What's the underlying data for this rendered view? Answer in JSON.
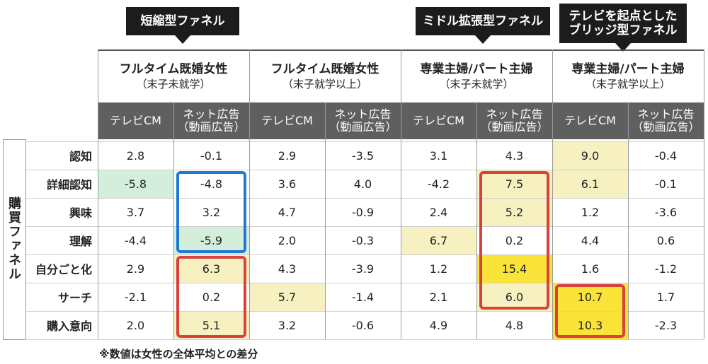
{
  "callouts": [
    {
      "id": "short",
      "lines": [
        "短縮型ファネル"
      ]
    },
    {
      "id": "middle",
      "lines": [
        "ミドル拡張型ファネル"
      ]
    },
    {
      "id": "bridge",
      "lines": [
        "テレビを起点とした",
        "ブリッジ型ファネル"
      ]
    }
  ],
  "funnel_axis_label": "購買ファネル",
  "note": "※数値は女性の全体平均との差分",
  "colors": {
    "highlight_light": "#f7f0c0",
    "highlight_strong": "#fbe43a",
    "highlight_green": "#d3efdc",
    "box_blue": "#1f78d6",
    "box_red": "#d9423a",
    "header_bg": "#5f5f5f"
  },
  "chart_data": {
    "type": "table",
    "segments": [
      {
        "name": "フルタイム既婚女性",
        "sub": "（末子未就学）"
      },
      {
        "name": "フルタイム既婚女性",
        "sub": "（末子就学以上）"
      },
      {
        "name": "専業主婦/パート主婦",
        "sub": "（末子未就学）"
      },
      {
        "name": "専業主婦/パート主婦",
        "sub": "（末子就学以上）"
      }
    ],
    "media": [
      [
        "テレビCM"
      ],
      [
        "ネット広告",
        "（動画広告）"
      ]
    ],
    "stages": [
      "認知",
      "詳細認知",
      "興味",
      "理解",
      "自分ごと化",
      "サーチ",
      "購入意向"
    ],
    "values": [
      [
        "2.8",
        "-0.1",
        "2.9",
        "-3.5",
        "3.1",
        "4.3",
        "9.0",
        "-0.4"
      ],
      [
        "-5.8",
        "-4.8",
        "3.6",
        "4.0",
        "-4.2",
        "7.5",
        "6.1",
        "-0.1"
      ],
      [
        "3.7",
        "3.2",
        "4.7",
        "-0.9",
        "2.4",
        "5.2",
        "1.2",
        "-3.6"
      ],
      [
        "-4.4",
        "-5.9",
        "2.0",
        "-0.3",
        "6.7",
        "0.2",
        "4.4",
        "0.6"
      ],
      [
        "2.9",
        "6.3",
        "4.3",
        "-3.9",
        "1.2",
        "15.4",
        "1.6",
        "-1.2"
      ],
      [
        "-2.1",
        "0.2",
        "5.7",
        "-1.4",
        "2.1",
        "6.0",
        "10.7",
        "1.7"
      ],
      [
        "2.0",
        "5.1",
        "3.2",
        "-0.6",
        "4.9",
        "4.8",
        "10.3",
        "-2.3"
      ]
    ],
    "highlights": [
      {
        "row": 0,
        "col": 6,
        "level": "light"
      },
      {
        "row": 1,
        "col": 0,
        "level": "green"
      },
      {
        "row": 1,
        "col": 5,
        "level": "light"
      },
      {
        "row": 1,
        "col": 6,
        "level": "light"
      },
      {
        "row": 2,
        "col": 5,
        "level": "light"
      },
      {
        "row": 3,
        "col": 1,
        "level": "green"
      },
      {
        "row": 3,
        "col": 4,
        "level": "light"
      },
      {
        "row": 4,
        "col": 1,
        "level": "light"
      },
      {
        "row": 4,
        "col": 5,
        "level": "strong"
      },
      {
        "row": 5,
        "col": 2,
        "level": "light"
      },
      {
        "row": 5,
        "col": 5,
        "level": "light"
      },
      {
        "row": 5,
        "col": 6,
        "level": "strong"
      },
      {
        "row": 6,
        "col": 1,
        "level": "light"
      },
      {
        "row": 6,
        "col": 6,
        "level": "strong"
      }
    ],
    "boxes": [
      {
        "col": 1,
        "row_start": 1,
        "row_end": 3,
        "color": "blue"
      },
      {
        "col": 1,
        "row_start": 4,
        "row_end": 6,
        "color": "red"
      },
      {
        "col": 5,
        "row_start": 1,
        "row_end": 5,
        "color": "red"
      },
      {
        "col": 6,
        "row_start": 5,
        "row_end": 6,
        "color": "red"
      }
    ]
  }
}
